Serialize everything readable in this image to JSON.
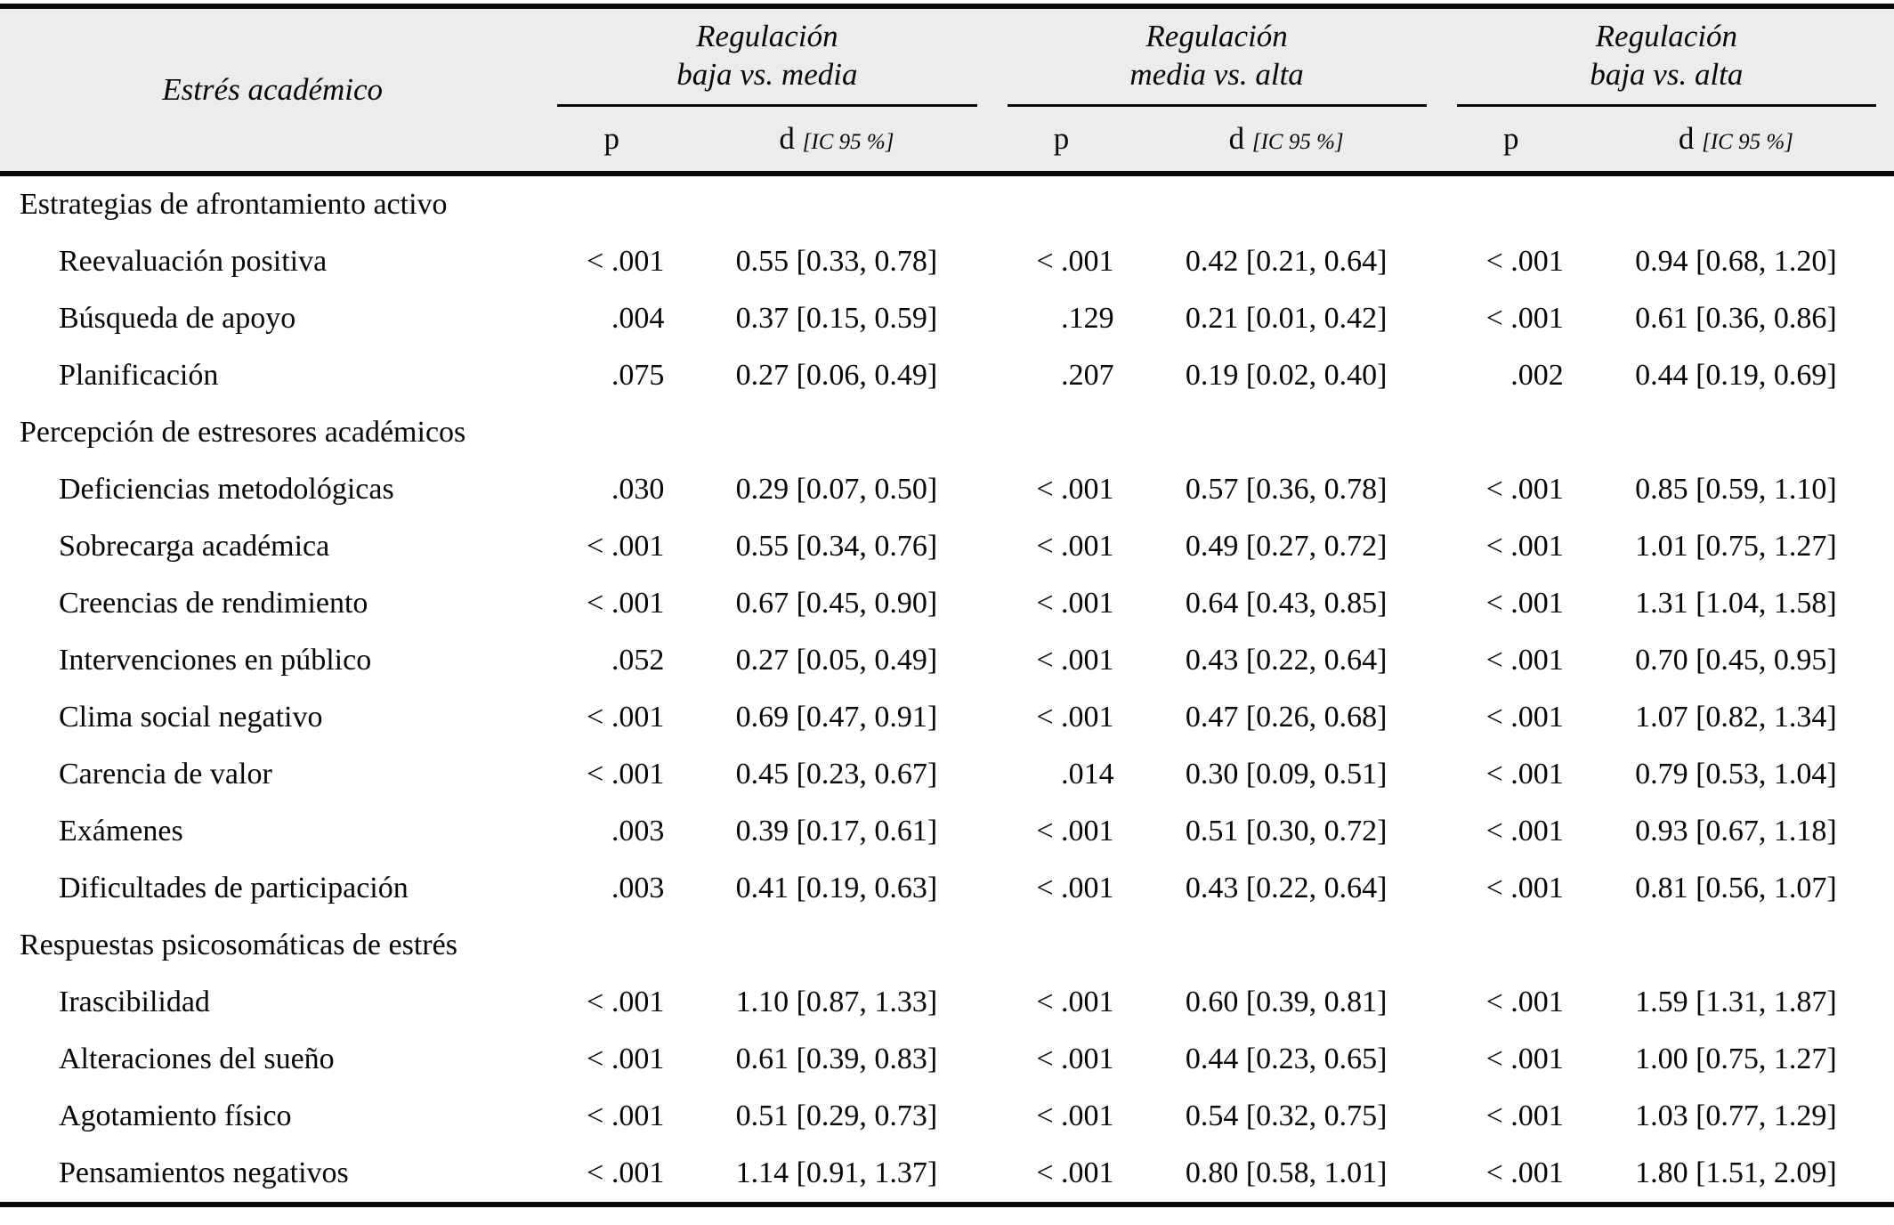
{
  "colors": {
    "header_bg": "#ececec",
    "rule": "#0a0a0a",
    "text": "#070707",
    "body_bg": "#ffffff"
  },
  "header": {
    "stub": "Estrés académico",
    "groups": [
      {
        "line1": "Regulación",
        "line2": "baja vs. media",
        "p": "p",
        "d": "d",
        "ci": "[IC 95 %]"
      },
      {
        "line1": "Regulación",
        "line2": "media vs. alta",
        "p": "p",
        "d": "d",
        "ci": "[IC 95 %]"
      },
      {
        "line1": "Regulación",
        "line2": "baja vs. alta",
        "p": "p",
        "d": "d",
        "ci": "[IC 95 %]"
      }
    ]
  },
  "sections": [
    {
      "title": "Estrategias de afrontamiento activo",
      "rows": [
        {
          "label": "Reevaluación positiva",
          "cells": [
            {
              "p": "< .001",
              "d": "0.55 [0.33, 0.78]"
            },
            {
              "p": "< .001",
              "d": "0.42 [0.21, 0.64]"
            },
            {
              "p": "< .001",
              "d": "0.94 [0.68, 1.20]"
            }
          ]
        },
        {
          "label": "Búsqueda de apoyo",
          "cells": [
            {
              "p": ".004",
              "d": "0.37 [0.15, 0.59]"
            },
            {
              "p": ".129",
              "d": "0.21 [0.01, 0.42]"
            },
            {
              "p": "< .001",
              "d": "0.61 [0.36, 0.86]"
            }
          ]
        },
        {
          "label": "Planificación",
          "cells": [
            {
              "p": ".075",
              "d": "0.27 [0.06, 0.49]"
            },
            {
              "p": ".207",
              "d": "0.19 [0.02, 0.40]"
            },
            {
              "p": ".002",
              "d": "0.44 [0.19, 0.69]"
            }
          ]
        }
      ]
    },
    {
      "title": "Percepción de estresores académicos",
      "rows": [
        {
          "label": "Deficiencias metodológicas",
          "cells": [
            {
              "p": ".030",
              "d": "0.29 [0.07, 0.50]"
            },
            {
              "p": "< .001",
              "d": "0.57 [0.36, 0.78]"
            },
            {
              "p": "< .001",
              "d": "0.85 [0.59, 1.10]"
            }
          ]
        },
        {
          "label": "Sobrecarga académica",
          "cells": [
            {
              "p": "< .001",
              "d": "0.55 [0.34, 0.76]"
            },
            {
              "p": "< .001",
              "d": "0.49 [0.27, 0.72]"
            },
            {
              "p": "< .001",
              "d": "1.01 [0.75, 1.27]"
            }
          ]
        },
        {
          "label": "Creencias de rendimiento",
          "cells": [
            {
              "p": "< .001",
              "d": "0.67 [0.45, 0.90]"
            },
            {
              "p": "< .001",
              "d": "0.64 [0.43, 0.85]"
            },
            {
              "p": "< .001",
              "d": "1.31 [1.04, 1.58]"
            }
          ]
        },
        {
          "label": "Intervenciones en público",
          "cells": [
            {
              "p": ".052",
              "d": "0.27 [0.05, 0.49]"
            },
            {
              "p": "< .001",
              "d": "0.43 [0.22, 0.64]"
            },
            {
              "p": "< .001",
              "d": "0.70 [0.45, 0.95]"
            }
          ]
        },
        {
          "label": "Clima social negativo",
          "cells": [
            {
              "p": "< .001",
              "d": "0.69 [0.47, 0.91]"
            },
            {
              "p": "< .001",
              "d": "0.47 [0.26, 0.68]"
            },
            {
              "p": "< .001",
              "d": "1.07 [0.82, 1.34]"
            }
          ]
        },
        {
          "label": "Carencia de valor",
          "cells": [
            {
              "p": "< .001",
              "d": "0.45 [0.23, 0.67]"
            },
            {
              "p": ".014",
              "d": "0.30 [0.09, 0.51]"
            },
            {
              "p": "< .001",
              "d": "0.79 [0.53, 1.04]"
            }
          ]
        },
        {
          "label": "Exámenes",
          "cells": [
            {
              "p": ".003",
              "d": "0.39 [0.17, 0.61]"
            },
            {
              "p": "< .001",
              "d": "0.51 [0.30, 0.72]"
            },
            {
              "p": "< .001",
              "d": "0.93 [0.67, 1.18]"
            }
          ]
        },
        {
          "label": "Dificultades de participación",
          "cells": [
            {
              "p": ".003",
              "d": "0.41 [0.19, 0.63]"
            },
            {
              "p": "< .001",
              "d": "0.43 [0.22, 0.64]"
            },
            {
              "p": "< .001",
              "d": "0.81 [0.56, 1.07]"
            }
          ]
        }
      ]
    },
    {
      "title": "Respuestas psicosomáticas de estrés",
      "rows": [
        {
          "label": "Irascibilidad",
          "cells": [
            {
              "p": "< .001",
              "d": "1.10 [0.87, 1.33]"
            },
            {
              "p": "< .001",
              "d": "0.60 [0.39, 0.81]"
            },
            {
              "p": "< .001",
              "d": "1.59 [1.31, 1.87]"
            }
          ]
        },
        {
          "label": "Alteraciones del sueño",
          "cells": [
            {
              "p": "< .001",
              "d": "0.61 [0.39, 0.83]"
            },
            {
              "p": "< .001",
              "d": "0.44 [0.23, 0.65]"
            },
            {
              "p": "< .001",
              "d": "1.00 [0.75, 1.27]"
            }
          ]
        },
        {
          "label": "Agotamiento físico",
          "cells": [
            {
              "p": "< .001",
              "d": "0.51 [0.29, 0.73]"
            },
            {
              "p": "< .001",
              "d": "0.54 [0.32, 0.75]"
            },
            {
              "p": "< .001",
              "d": "1.03 [0.77, 1.29]"
            }
          ]
        },
        {
          "label": "Pensamientos negativos",
          "cells": [
            {
              "p": "< .001",
              "d": "1.14 [0.91, 1.37]"
            },
            {
              "p": "< .001",
              "d": "0.80 [0.58, 1.01]"
            },
            {
              "p": "< .001",
              "d": "1.80 [1.51, 2.09]"
            }
          ]
        }
      ]
    }
  ]
}
